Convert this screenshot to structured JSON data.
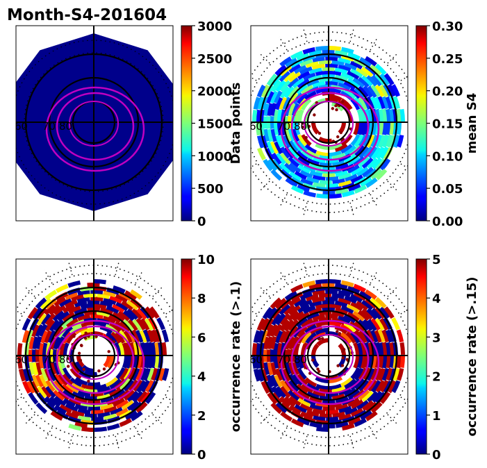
{
  "title": "Month-S4-201604",
  "colormap": "jet",
  "colors": {
    "magenta": "#c000c0",
    "grid": "#000000",
    "background": "#00008b"
  },
  "chart_data": [
    {
      "type": "heatmap",
      "projection": "north-polar",
      "cbar_label": "Data points",
      "cbar_ticks": [
        "0",
        "500",
        "1000",
        "1500",
        "2000",
        "2500",
        "3000"
      ],
      "clim": [
        0,
        3000
      ],
      "lat_labels": [
        "60",
        "70",
        "80"
      ],
      "pattern": "uniform"
    },
    {
      "type": "heatmap",
      "projection": "north-polar",
      "cbar_label": "mean S4",
      "cbar_ticks": [
        "0.00",
        "0.05",
        "0.10",
        "0.15",
        "0.20",
        "0.25",
        "0.30"
      ],
      "clim": [
        0,
        0.3
      ],
      "lat_labels": [
        "60",
        "70",
        "80"
      ],
      "pattern": "s4"
    },
    {
      "type": "heatmap",
      "projection": "north-polar",
      "cbar_label": "occurrence rate (>.1)",
      "cbar_ticks": [
        "0",
        "2",
        "4",
        "6",
        "8",
        "10"
      ],
      "clim": [
        0,
        10
      ],
      "lat_labels": [
        "60",
        "70",
        "80"
      ],
      "pattern": "occ1"
    },
    {
      "type": "heatmap",
      "projection": "north-polar",
      "cbar_label": "occurrence rate (>.15)",
      "cbar_ticks": [
        "0",
        "1",
        "2",
        "3",
        "4",
        "5"
      ],
      "clim": [
        0,
        5
      ],
      "lat_labels": [
        "60",
        "70",
        "80"
      ],
      "pattern": "occ2"
    }
  ]
}
